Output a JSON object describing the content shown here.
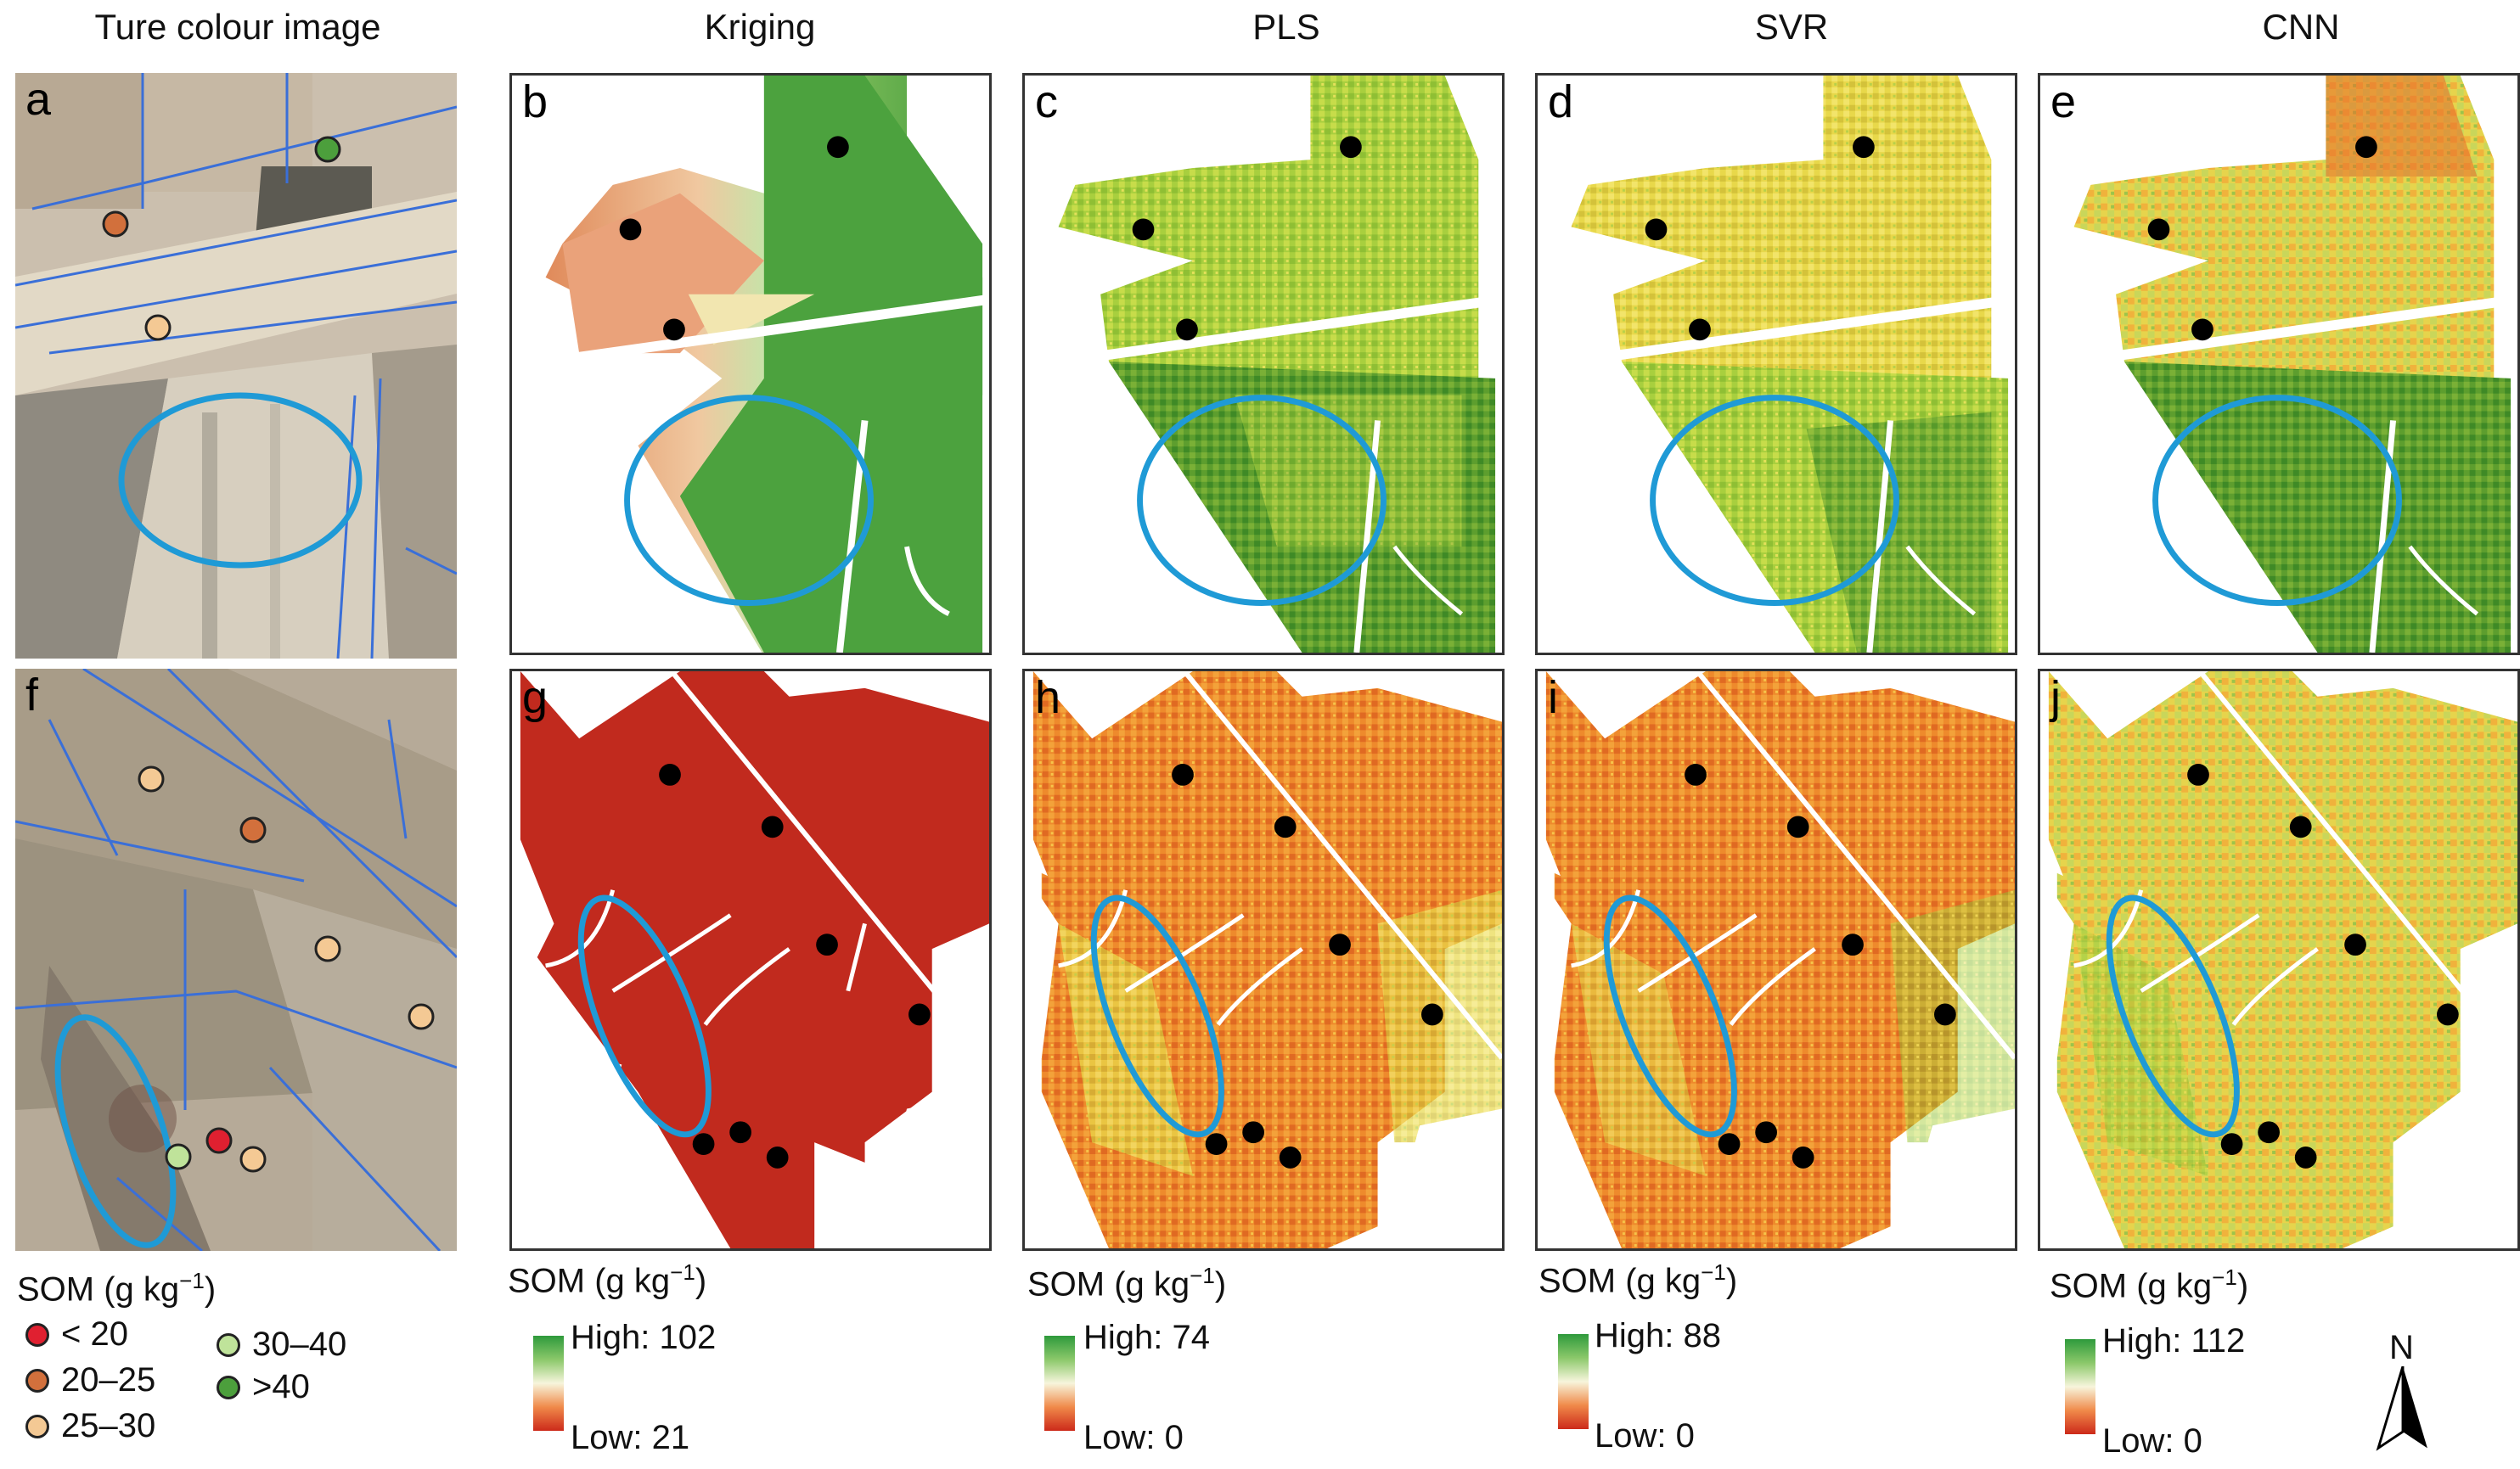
{
  "columns": {
    "true_colour": "Ture colour image",
    "kriging": "Kriging",
    "pls": "PLS",
    "svr": "SVR",
    "cnn": "CNN"
  },
  "panel_labels": {
    "a": "a",
    "b": "b",
    "c": "c",
    "d": "d",
    "e": "e",
    "f": "f",
    "g": "g",
    "h": "h",
    "i": "i",
    "j": "j"
  },
  "sample_legend": {
    "title": "SOM (g kg",
    "title_sup": "−1",
    "title_end": ")",
    "classes": [
      {
        "label": "< 20",
        "color": "#e02030"
      },
      {
        "label": "20–25",
        "color": "#d2703c"
      },
      {
        "label": "25–30",
        "color": "#f4c994"
      },
      {
        "label": "30–40",
        "color": "#bfe39a"
      },
      {
        "label": ">40",
        "color": "#4c9f3c"
      }
    ]
  },
  "ramps": {
    "title": "SOM (g kg",
    "title_sup": "−1",
    "title_end": ")",
    "kriging": {
      "high": "High: 102",
      "low": "Low: 21"
    },
    "pls": {
      "high": "High: 74",
      "low": "Low: 0"
    },
    "svr": {
      "high": "High: 88",
      "low": "Low: 0"
    },
    "cnn": {
      "high": "High: 112",
      "low": "Low: 0"
    }
  },
  "north_label": "N",
  "colors": {
    "ellipse": "#1f9ad6",
    "boundary": "#3a6fd8",
    "sample_point": "#000000"
  }
}
